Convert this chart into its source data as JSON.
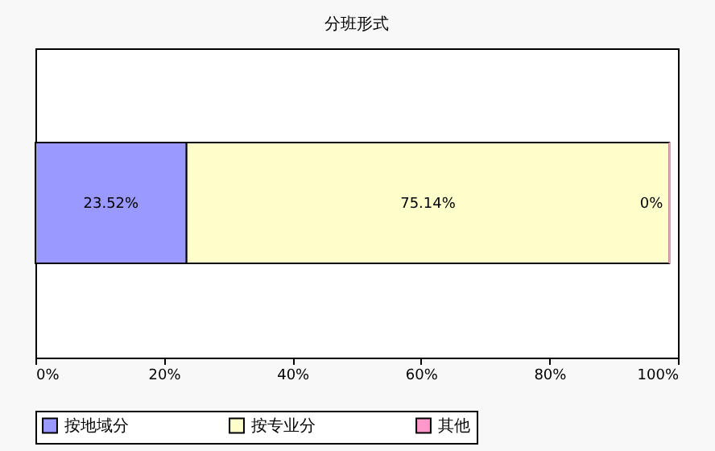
{
  "chart_data": {
    "type": "bar",
    "title": "分班形式",
    "orientation": "horizontal",
    "stacked": true,
    "categories": [
      null
    ],
    "series": [
      {
        "name": "按地域分",
        "color": "#9999ff",
        "values": [
          23.52
        ],
        "value_labels": [
          "23.52%"
        ]
      },
      {
        "name": "按专业分",
        "color": "#ffffcc",
        "values": [
          75.14
        ],
        "value_labels": [
          "75.14%"
        ]
      },
      {
        "name": "其他",
        "color": "#ff99cc",
        "values": [
          0
        ],
        "value_labels": [
          "0%"
        ]
      }
    ],
    "xlim": [
      0,
      100
    ],
    "xticks": [
      {
        "value": 0,
        "label": "0%"
      },
      {
        "value": 20,
        "label": "20%"
      },
      {
        "value": 40,
        "label": "40%"
      },
      {
        "value": 60,
        "label": "60%"
      },
      {
        "value": 80,
        "label": "80%"
      },
      {
        "value": 100,
        "label": "100%"
      }
    ],
    "grid": false,
    "legend": "bottom"
  }
}
